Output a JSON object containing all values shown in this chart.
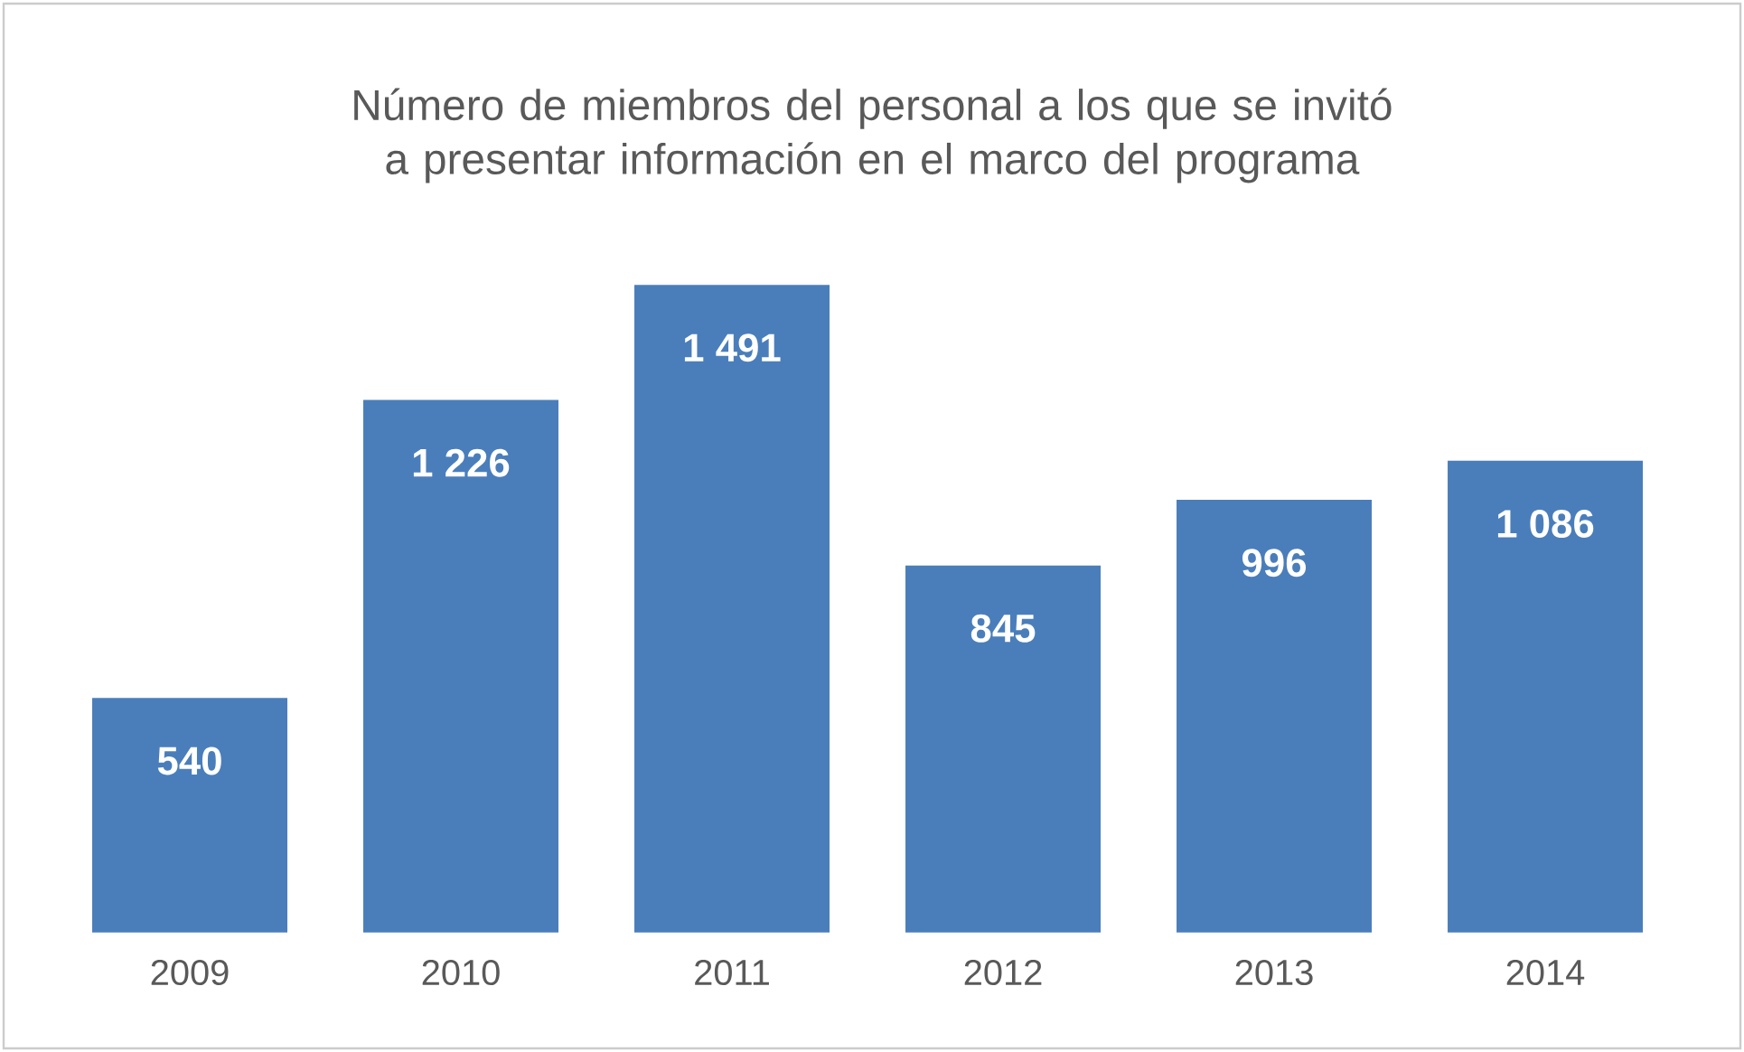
{
  "chart_data": {
    "type": "bar",
    "title": "Número de miembros del personal a los que se invitó a presentar información en el marco del programa",
    "categories": [
      "2009",
      "2010",
      "2011",
      "2012",
      "2013",
      "2014"
    ],
    "values": [
      540,
      1226,
      1491,
      845,
      996,
      1086
    ],
    "value_labels": [
      "540",
      "1 226",
      "1 491",
      "845",
      "996",
      "1 086"
    ],
    "color": "#4a7ebb"
  }
}
